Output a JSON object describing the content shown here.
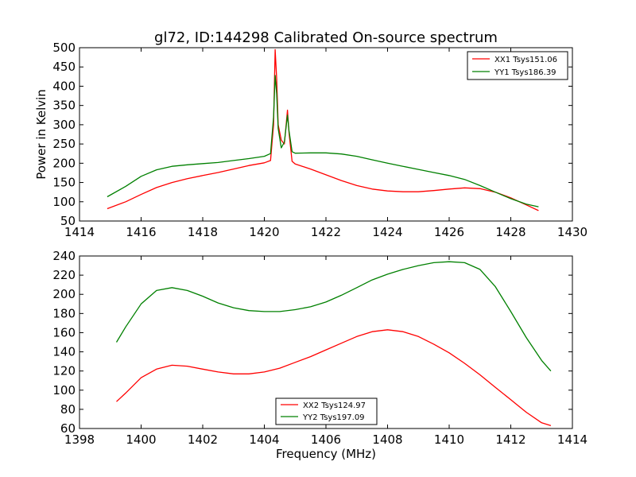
{
  "chart_data": [
    {
      "type": "line",
      "title": "gl72, ID:144298 Calibrated On-source spectrum",
      "xlabel": "",
      "ylabel": "Power in Kelvin",
      "xlim": [
        1414,
        1430
      ],
      "ylim": [
        50,
        500
      ],
      "xticks": [
        "1414",
        "1416",
        "1418",
        "1420",
        "1422",
        "1424",
        "1426",
        "1428",
        "1430"
      ],
      "yticks": [
        "50",
        "100",
        "150",
        "200",
        "250",
        "300",
        "350",
        "400",
        "450",
        "500"
      ],
      "legend_position": "top-right",
      "series": [
        {
          "name": "XX1 Tsys151.06",
          "color": "#ff0000",
          "x": [
            1414.9,
            1415.5,
            1416,
            1416.5,
            1417,
            1417.5,
            1418,
            1418.5,
            1419,
            1419.5,
            1420,
            1420.2,
            1420.3,
            1420.35,
            1420.4,
            1420.45,
            1420.55,
            1420.65,
            1420.75,
            1420.8,
            1420.9,
            1421,
            1421.5,
            1422,
            1422.5,
            1423,
            1423.5,
            1424,
            1424.5,
            1425,
            1425.5,
            1426,
            1426.5,
            1427,
            1427.5,
            1428,
            1428.5,
            1428.9
          ],
          "values": [
            82,
            100,
            119,
            137,
            150,
            160,
            168,
            176,
            185,
            194,
            201,
            207,
            300,
            495,
            420,
            300,
            260,
            250,
            338,
            280,
            205,
            198,
            185,
            170,
            155,
            142,
            133,
            128,
            126,
            126,
            129,
            133,
            136,
            134,
            125,
            110,
            92,
            77
          ]
        },
        {
          "name": "YY1 Tsys186.39",
          "color": "#008000",
          "x": [
            1414.9,
            1415.5,
            1416,
            1416.5,
            1417,
            1417.5,
            1418,
            1418.5,
            1419,
            1419.5,
            1420,
            1420.2,
            1420.3,
            1420.35,
            1420.4,
            1420.45,
            1420.55,
            1420.65,
            1420.75,
            1420.8,
            1420.9,
            1421,
            1421.5,
            1422,
            1422.5,
            1423,
            1423.5,
            1424,
            1424.5,
            1425,
            1425.5,
            1426,
            1426.5,
            1427,
            1427.5,
            1428,
            1428.5,
            1428.9
          ],
          "values": [
            113,
            140,
            166,
            183,
            192,
            196,
            199,
            202,
            207,
            212,
            218,
            225,
            320,
            428,
            380,
            290,
            240,
            255,
            325,
            285,
            230,
            226,
            227,
            227,
            224,
            218,
            209,
            200,
            192,
            184,
            176,
            168,
            158,
            142,
            125,
            108,
            94,
            87
          ]
        }
      ]
    },
    {
      "type": "line",
      "title": "",
      "xlabel": "Frequency (MHz)",
      "ylabel": "",
      "xlim": [
        1398,
        1414
      ],
      "ylim": [
        60,
        240
      ],
      "xticks": [
        "1398",
        "1400",
        "1402",
        "1404",
        "1406",
        "1408",
        "1410",
        "1412",
        "1414"
      ],
      "yticks": [
        "60",
        "80",
        "100",
        "120",
        "140",
        "160",
        "180",
        "200",
        "220",
        "240"
      ],
      "legend_position": "bottom-center",
      "series": [
        {
          "name": "XX2 Tsys124.97",
          "color": "#ff0000",
          "x": [
            1399.2,
            1399.5,
            1400,
            1400.5,
            1401,
            1401.5,
            1402,
            1402.5,
            1403,
            1403.5,
            1404,
            1404.5,
            1405,
            1405.5,
            1406,
            1406.5,
            1407,
            1407.5,
            1408,
            1408.5,
            1409,
            1409.5,
            1410,
            1410.5,
            1411,
            1411.5,
            1412,
            1412.5,
            1413,
            1413.3
          ],
          "values": [
            88,
            97,
            113,
            122,
            126,
            125,
            122,
            119,
            117,
            117,
            119,
            123,
            129,
            135,
            142,
            149,
            156,
            161,
            163,
            161,
            156,
            148,
            139,
            128,
            116,
            103,
            90,
            77,
            66,
            63
          ]
        },
        {
          "name": "YY2 Tsys197.09",
          "color": "#008000",
          "x": [
            1399.2,
            1399.5,
            1400,
            1400.5,
            1401,
            1401.5,
            1402,
            1402.5,
            1403,
            1403.5,
            1404,
            1404.5,
            1405,
            1405.5,
            1406,
            1406.5,
            1407,
            1407.5,
            1408,
            1408.5,
            1409,
            1409.5,
            1410,
            1410.5,
            1411,
            1411.5,
            1412,
            1412.5,
            1413,
            1413.3
          ],
          "values": [
            150,
            166,
            190,
            204,
            207,
            204,
            198,
            191,
            186,
            183,
            182,
            182,
            184,
            187,
            192,
            199,
            207,
            215,
            221,
            226,
            230,
            233,
            234,
            233,
            226,
            208,
            182,
            155,
            131,
            120
          ]
        }
      ]
    }
  ]
}
